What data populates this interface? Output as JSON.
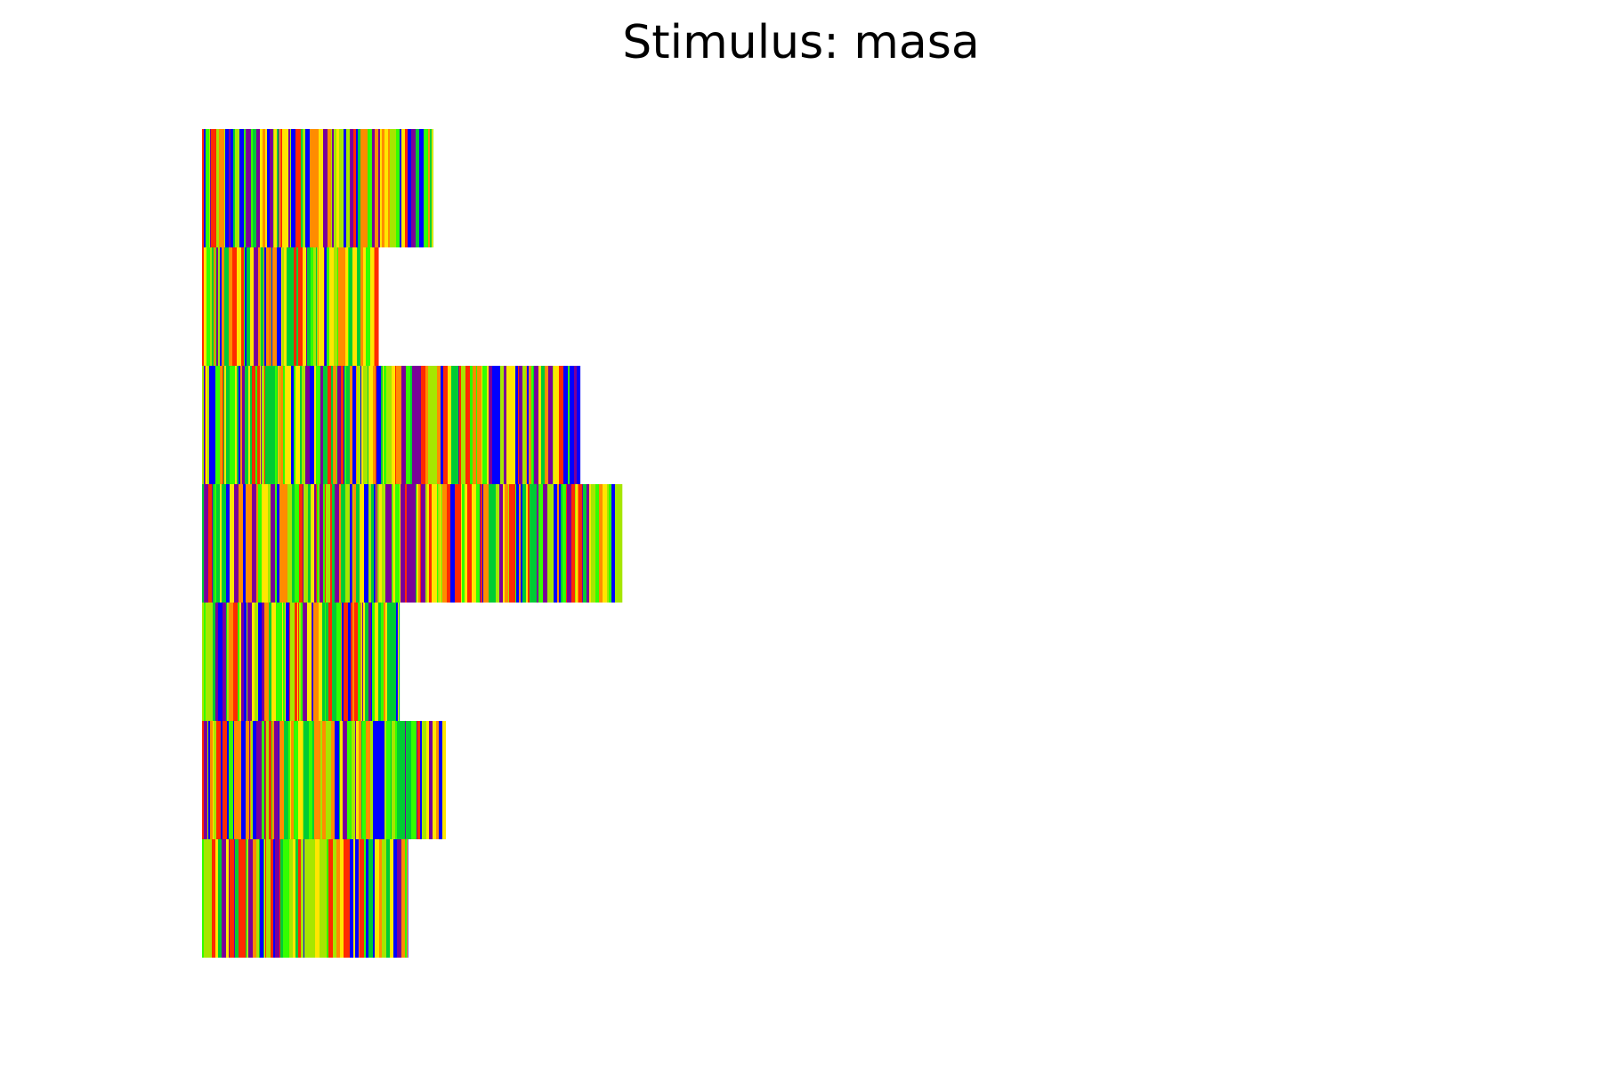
{
  "chart_data": {
    "type": "heatmap",
    "title": "Stimulus: masa",
    "xlabel": "",
    "ylabel": "",
    "axes_visible": false,
    "grid": false,
    "legend": "none",
    "palette": [
      "#0000ff",
      "#7a0099",
      "#ff2a00",
      "#ff8c00",
      "#ffe600",
      "#a6e600",
      "#33ff00",
      "#00cc33"
    ],
    "rows": [
      {
        "length": 0.55,
        "seed": 11
      },
      {
        "length": 0.42,
        "seed": 23
      },
      {
        "length": 0.9,
        "seed": 37
      },
      {
        "length": 1.0,
        "seed": 41
      },
      {
        "length": 0.47,
        "seed": 59
      },
      {
        "length": 0.58,
        "seed": 67
      },
      {
        "length": 0.49,
        "seed": 83
      }
    ]
  }
}
